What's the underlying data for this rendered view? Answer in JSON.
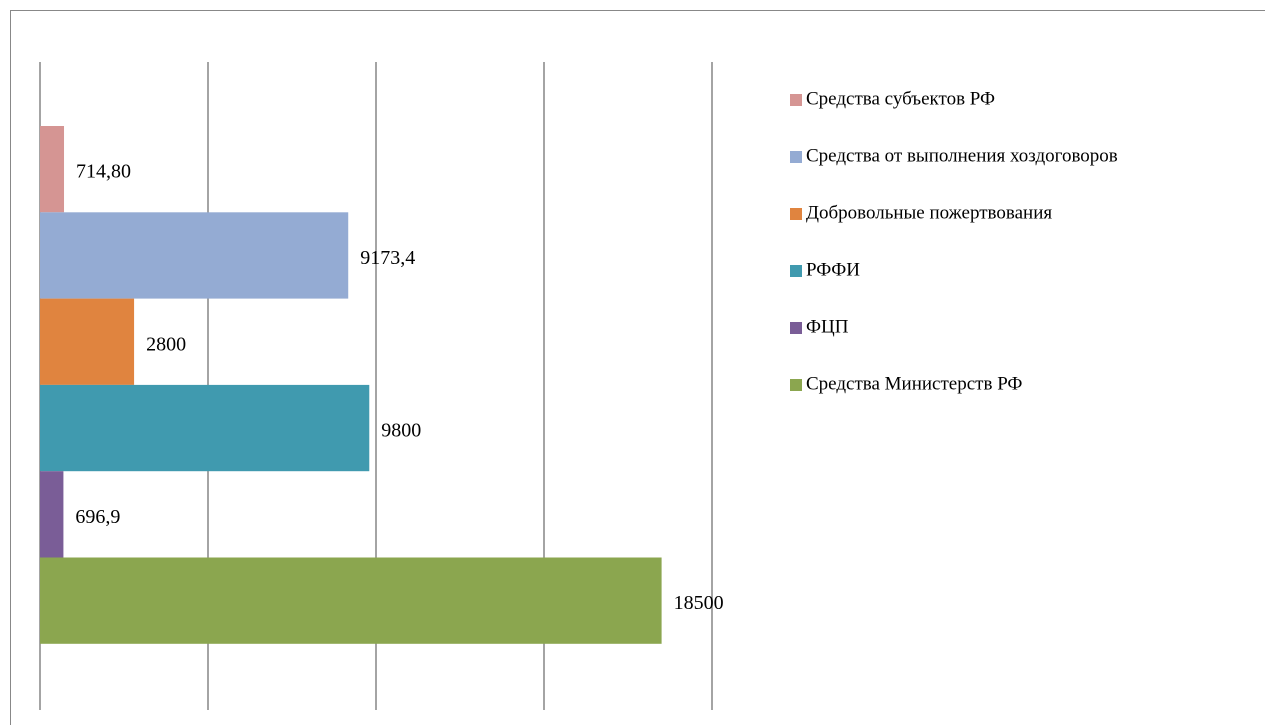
{
  "chart_data": {
    "type": "bar",
    "orientation": "horizontal",
    "categories": [
      null
    ],
    "series": [
      {
        "name": "Средства субъектов РФ",
        "color": "#d59593",
        "values": [
          714.8
        ],
        "value_labels": [
          "714,80"
        ]
      },
      {
        "name": "Средства от выполнения хоздоговоров",
        "color": "#94abd3",
        "values": [
          9173.4
        ],
        "value_labels": [
          "9173,4"
        ]
      },
      {
        "name": "Добровольные пожертвования",
        "color": "#e0843f",
        "values": [
          2800
        ],
        "value_labels": [
          "2800"
        ]
      },
      {
        "name": "РФФИ",
        "color": "#409aaf",
        "values": [
          9800
        ],
        "value_labels": [
          "9800"
        ]
      },
      {
        "name": "ФЦП",
        "color": "#7a5d97",
        "values": [
          696.9
        ],
        "value_labels": [
          "696,9"
        ]
      },
      {
        "name": "Средства Министерств РФ",
        "color": "#8ba64f",
        "values": [
          18500
        ],
        "value_labels": [
          "18500"
        ]
      }
    ],
    "xlim": [
      0,
      20000
    ],
    "xticks": [
      0,
      5000,
      10000,
      15000,
      20000
    ],
    "grid": true,
    "legend": "right"
  }
}
